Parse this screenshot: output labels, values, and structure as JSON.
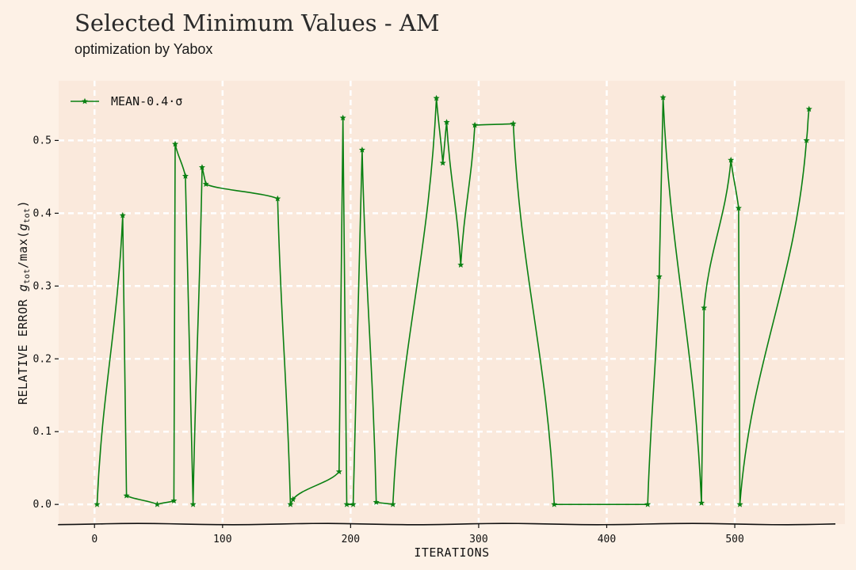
{
  "header": {
    "title": "Selected Minimum Values - AM",
    "subtitle": "optimization by Yabox"
  },
  "colors": {
    "background": "#fdf1e6",
    "plot_area": "#fae9dc",
    "series": "#0a8012",
    "grid": "#ffffff"
  },
  "chart_data": {
    "type": "line",
    "title": "Selected Minimum Values - AM",
    "subtitle": "optimization by Yabox",
    "xlabel": "ITERATIONS",
    "ylabel_main": "RELATIVE ERROR ",
    "ylabel_math_1": "g",
    "ylabel_sub_1": "tot",
    "ylabel_mid": "/max(",
    "ylabel_math_2": "g",
    "ylabel_sub_2": "tot",
    "ylabel_end": ")",
    "xlim": [
      -28,
      586
    ],
    "ylim": [
      -0.027,
      0.582
    ],
    "xticks": [
      0,
      100,
      200,
      300,
      400,
      500
    ],
    "yticks": [
      0.0,
      0.1,
      0.2,
      0.3,
      0.4,
      0.5
    ],
    "ytick_labels": [
      "0.0",
      "0.1",
      "0.2",
      "0.3",
      "0.4",
      "0.5"
    ],
    "grid": true,
    "legend_position": "top-left",
    "series": [
      {
        "name": "MEAN-0.4·σ",
        "marker": "star",
        "x": [
          2,
          22,
          25,
          49,
          62,
          63,
          71,
          77,
          84,
          87,
          143,
          153,
          155,
          191,
          194,
          197,
          202,
          209,
          220,
          233,
          267,
          272,
          275,
          286,
          297,
          327,
          359,
          432,
          441,
          444,
          474,
          476,
          497,
          503,
          504,
          556,
          558
        ],
        "y": [
          0.0,
          0.397,
          0.012,
          0.0,
          0.005,
          0.495,
          0.451,
          0.0,
          0.463,
          0.44,
          0.42,
          0.0,
          0.007,
          0.045,
          0.531,
          0.0,
          0.0,
          0.487,
          0.003,
          0.0,
          0.558,
          0.469,
          0.525,
          0.329,
          0.521,
          0.523,
          0.0,
          0.0,
          0.313,
          0.559,
          0.002,
          0.27,
          0.473,
          0.407,
          0.0,
          0.5,
          0.543
        ]
      }
    ]
  }
}
